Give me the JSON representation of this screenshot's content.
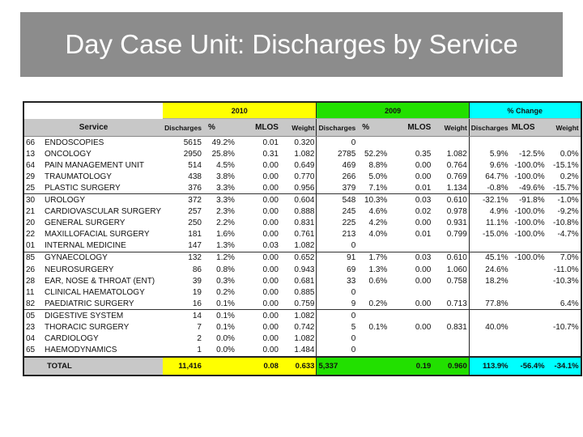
{
  "title": "Day Case Unit: Discharges by Service",
  "groups": {
    "y2010": "2010",
    "y2009": "2009",
    "change": "% Change"
  },
  "columns": {
    "service": "Service",
    "d2010": "Discharges",
    "p2010": "%",
    "m2010": "MLOS",
    "w2010": "Weight",
    "d2009": "Discharges",
    "p2009": "%",
    "m2009": "MLOS",
    "w2009": "Weight",
    "dch": "Discharges",
    "mch": "MLOS",
    "wch": "Weight"
  },
  "colors": {
    "y2010": "#ffff00",
    "y2009": "#22e000",
    "change": "#00ffff",
    "header": "#c8c8c8",
    "banner": "#8c8c8c"
  },
  "rows": [
    [
      "66",
      "ENDOSCOPIES",
      "5615",
      "49.2%",
      "0.01",
      "0.320",
      "0",
      "",
      "",
      "",
      "",
      "",
      ""
    ],
    [
      "13",
      "ONCOLOGY",
      "2950",
      "25.8%",
      "0.31",
      "1.082",
      "2785",
      "52.2%",
      "0.35",
      "1.082",
      "5.9%",
      "-12.5%",
      "0.0%"
    ],
    [
      "64",
      "PAIN MANAGEMENT UNIT",
      "514",
      "4.5%",
      "0.00",
      "0.649",
      "469",
      "8.8%",
      "0.00",
      "0.764",
      "9.6%",
      "-100.0%",
      "-15.1%"
    ],
    [
      "29",
      "TRAUMATOLOGY",
      "438",
      "3.8%",
      "0.00",
      "0.770",
      "266",
      "5.0%",
      "0.00",
      "0.769",
      "64.7%",
      "-100.0%",
      "0.2%"
    ],
    [
      "25",
      "PLASTIC SURGERY",
      "376",
      "3.3%",
      "0.00",
      "0.956",
      "379",
      "7.1%",
      "0.01",
      "1.134",
      "-0.8%",
      "-49.6%",
      "-15.7%"
    ],
    [
      "30",
      "UROLOGY",
      "372",
      "3.3%",
      "0.00",
      "0.604",
      "548",
      "10.3%",
      "0.03",
      "0.610",
      "-32.1%",
      "-91.8%",
      "-1.0%"
    ],
    [
      "21",
      "CARDIOVASCULAR SURGERY",
      "257",
      "2.3%",
      "0.00",
      "0.888",
      "245",
      "4.6%",
      "0.02",
      "0.978",
      "4.9%",
      "-100.0%",
      "-9.2%"
    ],
    [
      "20",
      "GENERAL SURGERY",
      "250",
      "2.2%",
      "0.00",
      "0.831",
      "225",
      "4.2%",
      "0.00",
      "0.931",
      "11.1%",
      "-100.0%",
      "-10.8%"
    ],
    [
      "22",
      "MAXILLOFACIAL SURGERY",
      "181",
      "1.6%",
      "0.00",
      "0.761",
      "213",
      "4.0%",
      "0.01",
      "0.799",
      "-15.0%",
      "-100.0%",
      "-4.7%"
    ],
    [
      "01",
      "INTERNAL MEDICINE",
      "147",
      "1.3%",
      "0.03",
      "1.082",
      "0",
      "",
      "",
      "",
      "",
      "",
      ""
    ],
    [
      "85",
      "GYNAECOLOGY",
      "132",
      "1.2%",
      "0.00",
      "0.652",
      "91",
      "1.7%",
      "0.03",
      "0.610",
      "45.1%",
      "-100.0%",
      "7.0%"
    ],
    [
      "26",
      "NEUROSURGERY",
      "86",
      "0.8%",
      "0.00",
      "0.943",
      "69",
      "1.3%",
      "0.00",
      "1.060",
      "24.6%",
      "",
      "-11.0%"
    ],
    [
      "28",
      "EAR, NOSE & THROAT (ENT)",
      "39",
      "0.3%",
      "0.00",
      "0.681",
      "33",
      "0.6%",
      "0.00",
      "0.758",
      "18.2%",
      "",
      "-10.3%"
    ],
    [
      "11",
      "CLINICAL HAEMATOLOGY",
      "19",
      "0.2%",
      "0.00",
      "0.885",
      "0",
      "",
      "",
      "",
      "",
      "",
      ""
    ],
    [
      "82",
      "PAEDIATRIC SURGERY",
      "16",
      "0.1%",
      "0.00",
      "0.759",
      "9",
      "0.2%",
      "0.00",
      "0.713",
      "77.8%",
      "",
      "6.4%"
    ],
    [
      "05",
      "DIGESTIVE SYSTEM",
      "14",
      "0.1%",
      "0.00",
      "1.082",
      "0",
      "",
      "",
      "",
      "",
      "",
      ""
    ],
    [
      "23",
      "THORACIC SURGERY",
      "7",
      "0.1%",
      "0.00",
      "0.742",
      "5",
      "0.1%",
      "0.00",
      "0.831",
      "40.0%",
      "",
      "-10.7%"
    ],
    [
      "04",
      "CARDIOLOGY",
      "2",
      "0.0%",
      "0.00",
      "1.082",
      "0",
      "",
      "",
      "",
      "",
      "",
      ""
    ],
    [
      "65",
      "HAEMODYNAMICS",
      "1",
      "0.0%",
      "0.00",
      "1.484",
      "0",
      "",
      "",
      "",
      "",
      "",
      ""
    ]
  ],
  "total": {
    "label": "TOTAL",
    "d2010": "11,416",
    "m2010": "0.08",
    "w2010": "0.633",
    "d2009": "5,337",
    "m2009": "0.19",
    "w2009": "0.960",
    "dch": "113.9%",
    "mch": "-56.4%",
    "wch": "-34.1%"
  }
}
